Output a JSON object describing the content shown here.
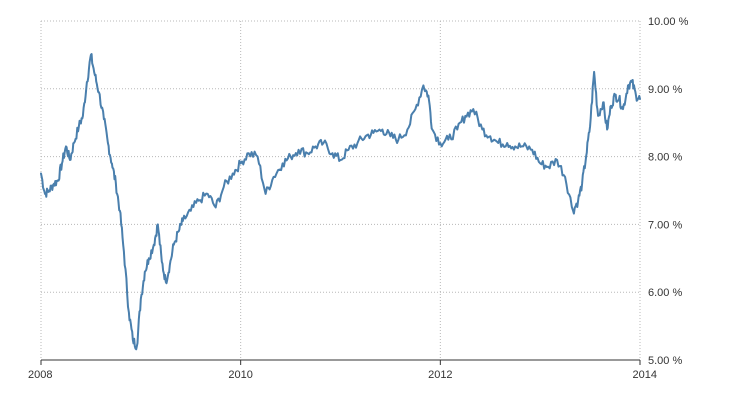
{
  "chart_data": {
    "type": "line",
    "title": "",
    "xlabel": "",
    "ylabel": "",
    "xlim": [
      2008.0,
      2014.0
    ],
    "ylim": [
      5.0,
      10.0
    ],
    "x_ticks": [
      2008,
      2010,
      2012,
      2014
    ],
    "x_tick_labels": [
      "2008",
      "2010",
      "2012",
      "2014"
    ],
    "y_ticks": [
      5,
      6,
      7,
      8,
      9,
      10
    ],
    "y_tick_labels": [
      "5.00 %",
      "6.00 %",
      "7.00 %",
      "8.00 %",
      "9.00 %",
      "10.00 %"
    ],
    "y_axis_side": "right",
    "grid": true,
    "legend": "none",
    "colors": {
      "line": "#4a7fad",
      "grid": "#b8b8b8",
      "axis": "#333333",
      "text": "#333333"
    },
    "series": [
      {
        "x": [
          2008.0,
          2008.04,
          2008.08,
          2008.13,
          2008.17,
          2008.21,
          2008.25,
          2008.29,
          2008.33,
          2008.38,
          2008.42,
          2008.46,
          2008.5,
          2008.54,
          2008.58,
          2008.63,
          2008.67,
          2008.71,
          2008.75,
          2008.79,
          2008.83,
          2008.88,
          2008.92,
          2008.96,
          2009.0,
          2009.04,
          2009.08,
          2009.13,
          2009.17,
          2009.21,
          2009.25,
          2009.29,
          2009.33,
          2009.38,
          2009.42,
          2009.5,
          2009.58,
          2009.67,
          2009.75,
          2009.83,
          2009.92,
          2010.0,
          2010.08,
          2010.17,
          2010.25,
          2010.33,
          2010.42,
          2010.5,
          2010.58,
          2010.67,
          2010.75,
          2010.83,
          2010.92,
          2011.0,
          2011.08,
          2011.17,
          2011.25,
          2011.33,
          2011.42,
          2011.5,
          2011.58,
          2011.67,
          2011.75,
          2011.83,
          2011.88,
          2011.92,
          2012.0,
          2012.08,
          2012.17,
          2012.25,
          2012.33,
          2012.42,
          2012.5,
          2012.58,
          2012.67,
          2012.75,
          2012.83,
          2012.92,
          2013.0,
          2013.08,
          2013.17,
          2013.25,
          2013.33,
          2013.38,
          2013.42,
          2013.46,
          2013.5,
          2013.54,
          2013.58,
          2013.63,
          2013.67,
          2013.71,
          2013.75,
          2013.79,
          2013.83,
          2013.88,
          2013.92,
          2013.96,
          2014.0
        ],
        "values": [
          7.75,
          7.45,
          7.5,
          7.6,
          7.65,
          7.9,
          8.15,
          7.95,
          8.2,
          8.45,
          8.6,
          9.1,
          9.5,
          9.2,
          8.95,
          8.55,
          8.2,
          7.9,
          7.6,
          7.2,
          6.6,
          5.7,
          5.3,
          5.2,
          5.9,
          6.3,
          6.5,
          6.7,
          7.0,
          6.45,
          6.15,
          6.4,
          6.7,
          6.9,
          7.05,
          7.2,
          7.35,
          7.45,
          7.25,
          7.55,
          7.75,
          7.9,
          8.05,
          8.0,
          7.45,
          7.7,
          7.9,
          8.0,
          8.1,
          8.05,
          8.15,
          8.2,
          8.05,
          7.95,
          8.1,
          8.2,
          8.3,
          8.35,
          8.4,
          8.3,
          8.25,
          8.4,
          8.7,
          9.05,
          8.9,
          8.4,
          8.2,
          8.25,
          8.4,
          8.6,
          8.7,
          8.4,
          8.3,
          8.2,
          8.2,
          8.15,
          8.15,
          8.1,
          7.9,
          7.85,
          7.95,
          7.7,
          7.2,
          7.35,
          7.6,
          8.0,
          8.45,
          9.25,
          8.6,
          8.8,
          8.4,
          8.75,
          8.9,
          8.85,
          8.7,
          9.05,
          9.1,
          8.9,
          8.85
        ]
      }
    ]
  }
}
